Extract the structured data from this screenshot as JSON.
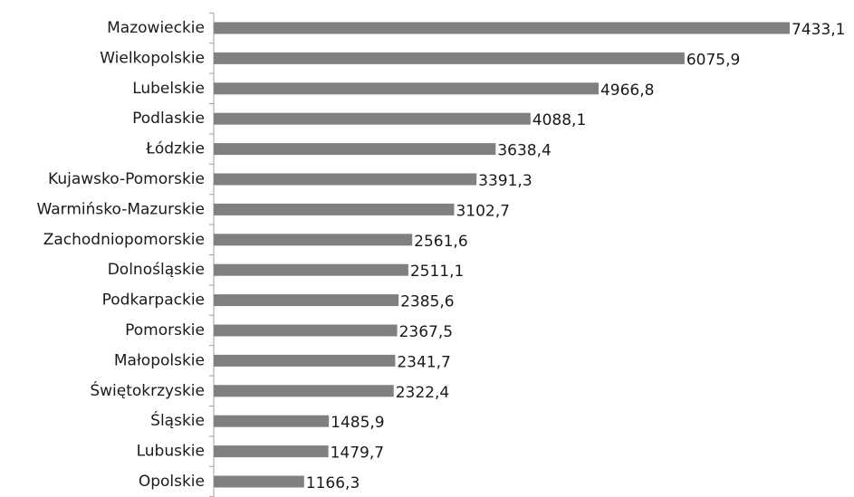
{
  "chart_data": {
    "type": "bar",
    "orientation": "horizontal",
    "title": "",
    "xlabel": "",
    "ylabel": "",
    "bar_color": "#808080",
    "grid": false,
    "legend": "none",
    "xlim": [
      0,
      7433.1
    ],
    "categories": [
      "Mazowieckie",
      "Wielkopolskie",
      "Lubelskie",
      "Podlaskie",
      "Łódzkie",
      "Kujawsko-Pomorskie",
      "Warmińsko-Mazurskie",
      "Zachodniopomorskie",
      "Dolnośląskie",
      "Podkarpackie",
      "Pomorskie",
      "Małopolskie",
      "Świętokrzyskie",
      "Śląskie",
      "Lubuskie",
      "Opolskie"
    ],
    "values": [
      7433.1,
      6075.9,
      4966.8,
      4088.1,
      3638.4,
      3391.3,
      3102.7,
      2561.6,
      2511.1,
      2385.6,
      2367.5,
      2341.7,
      2322.4,
      1485.9,
      1479.7,
      1166.3
    ],
    "value_labels": [
      "7433,1",
      "6075,9",
      "4966,8",
      "4088,1",
      "3638,4",
      "3391,3",
      "3102,7",
      "2561,6",
      "2511,1",
      "2385,6",
      "2367,5",
      "2341,7",
      "2322,4",
      "1485,9",
      "1479,7",
      "1166,3"
    ]
  }
}
